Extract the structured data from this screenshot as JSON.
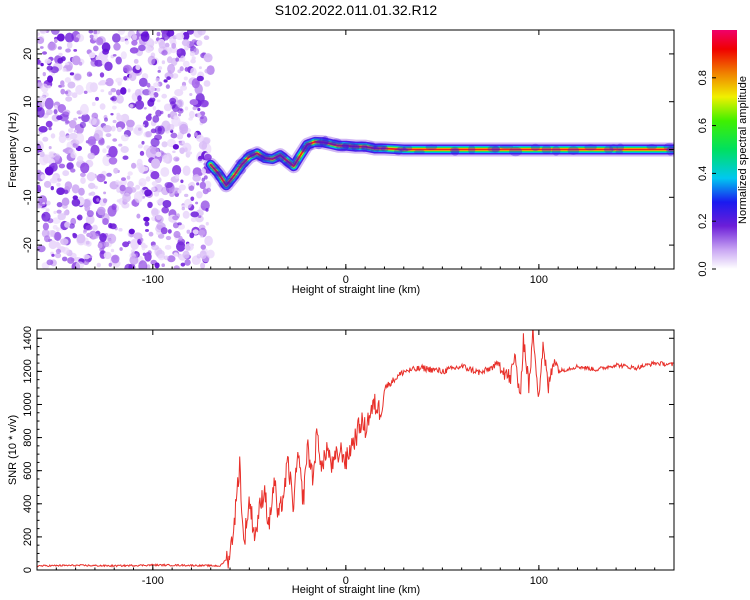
{
  "title": "S102.2022.011.01.32.R12",
  "chart_data": [
    {
      "type": "heatmap",
      "panel": "top",
      "xlabel": "Height of straight line (km)",
      "ylabel": "Frequency (Hz)",
      "xlim": [
        -160,
        170
      ],
      "ylim": [
        -25,
        25
      ],
      "xticks": [
        -100,
        0,
        100
      ],
      "yticks": [
        -20,
        -10,
        0,
        10,
        20
      ],
      "noise_region_x": [
        -160,
        -70
      ],
      "ridge": {
        "x": [
          -70,
          -66,
          -62,
          -58,
          -54,
          -50,
          -46,
          -42,
          -38,
          -34,
          -30,
          -27,
          -24,
          -20,
          -16,
          -12,
          -8,
          -4,
          0,
          5,
          10,
          15,
          20,
          30,
          40,
          60,
          80,
          100,
          120,
          140,
          160,
          170
        ],
        "y": [
          -3.2,
          -5,
          -7.5,
          -5.5,
          -3.2,
          -1.5,
          -0.8,
          -1.8,
          -2,
          -1.2,
          -2.5,
          -3.5,
          -1.5,
          1,
          1.6,
          1.5,
          1.2,
          0.8,
          0.8,
          0.6,
          0.6,
          0.2,
          0.2,
          0,
          0,
          0,
          0,
          0,
          0,
          0,
          0,
          0
        ]
      },
      "colorbar": {
        "label": "Normalized spectral amplitude",
        "range": [
          0.0,
          1.0
        ],
        "ticks": [
          0.0,
          0.2,
          0.4,
          0.6,
          0.8
        ]
      }
    },
    {
      "type": "line",
      "panel": "bottom",
      "xlabel": "Height of straight line (km)",
      "ylabel": "SNR (10 * v/v)",
      "xlim": [
        -160,
        170
      ],
      "ylim": [
        0,
        1450
      ],
      "xticks": [
        -100,
        0,
        100
      ],
      "yticks": [
        0,
        200,
        400,
        600,
        800,
        1000,
        1200,
        1400
      ],
      "series": [
        {
          "color": "#e8302a",
          "x": [
            -160,
            -140,
            -120,
            -100,
            -80,
            -65,
            -60,
            -57,
            -55,
            -53,
            -50,
            -47,
            -45,
            -42,
            -40,
            -37,
            -35,
            -32,
            -30,
            -27,
            -25,
            -22,
            -20,
            -17,
            -15,
            -12,
            -10,
            -7,
            -5,
            -2,
            0,
            3,
            5,
            8,
            10,
            12,
            15,
            18,
            20,
            25,
            30,
            40,
            50,
            60,
            70,
            80,
            85,
            88,
            90,
            92,
            95,
            97,
            100,
            102,
            105,
            108,
            110,
            120,
            130,
            140,
            150,
            160,
            170
          ],
          "y": [
            25,
            28,
            25,
            30,
            28,
            25,
            90,
            380,
            650,
            150,
            420,
            200,
            350,
            500,
            250,
            550,
            300,
            480,
            650,
            380,
            700,
            420,
            750,
            550,
            820,
            600,
            750,
            620,
            680,
            720,
            650,
            760,
            800,
            900,
            850,
            930,
            1000,
            960,
            1100,
            1150,
            1200,
            1220,
            1200,
            1230,
            1190,
            1250,
            1150,
            1300,
            1000,
            1400,
            1100,
            1450,
            1050,
            1350,
            1100,
            1300,
            1200,
            1230,
            1210,
            1240,
            1220,
            1250,
            1240
          ]
        }
      ]
    }
  ]
}
